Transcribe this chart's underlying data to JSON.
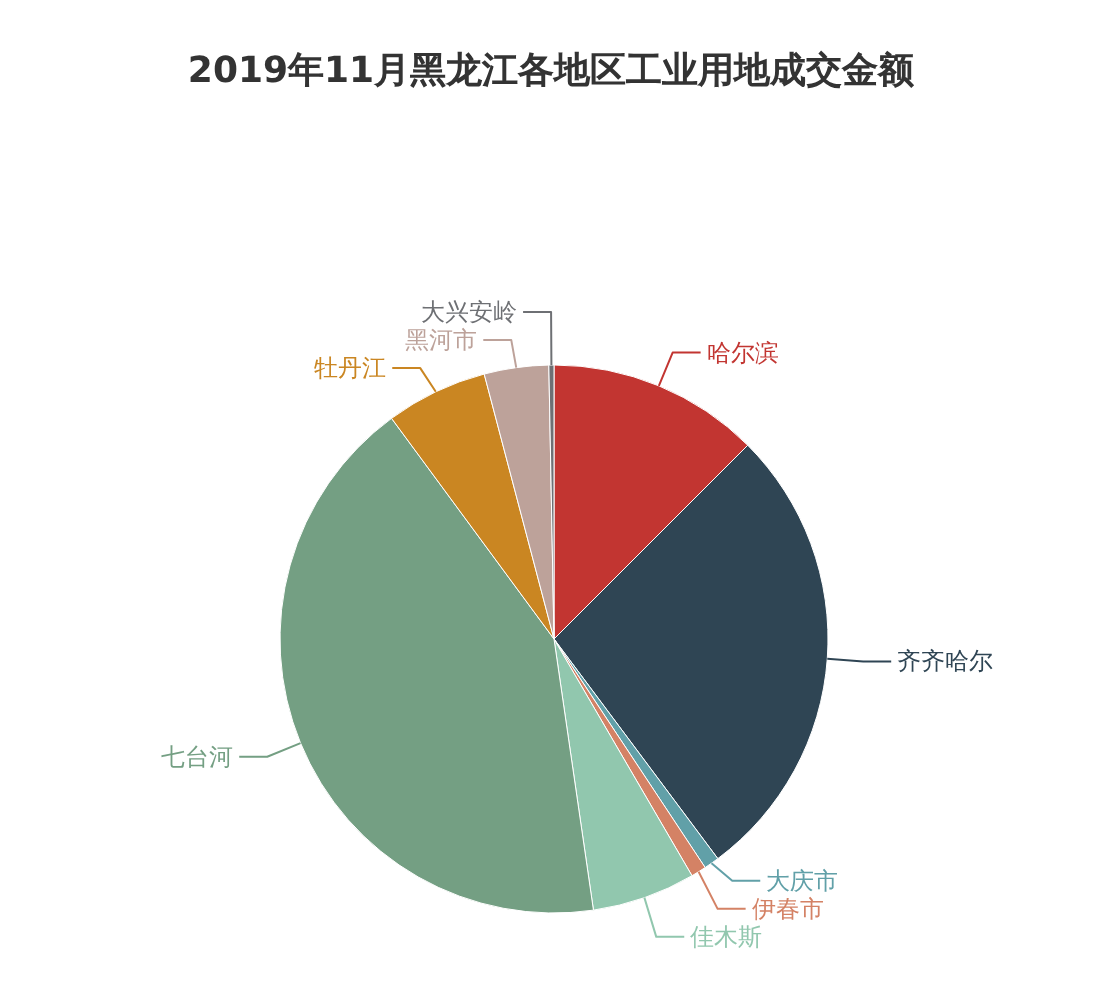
{
  "chart_data": {
    "type": "pie",
    "title": "2019年11月黑龙江各地区工业用地成交金额",
    "categories": [
      "哈尔滨",
      "齐齐哈尔",
      "大庆市",
      "伊春市",
      "佳木斯",
      "七台河",
      "牡丹江",
      "黑河市",
      "大兴安岭"
    ],
    "values": [
      12.5,
      27.3,
      0.9,
      0.9,
      6.1,
      42.2,
      6.0,
      3.8,
      0.3
    ],
    "colors": [
      "#c23531",
      "#2f4554",
      "#61a0a8",
      "#d48265",
      "#91c7ae",
      "#749f83",
      "#ca8622",
      "#bda29a",
      "#6e7074"
    ]
  }
}
